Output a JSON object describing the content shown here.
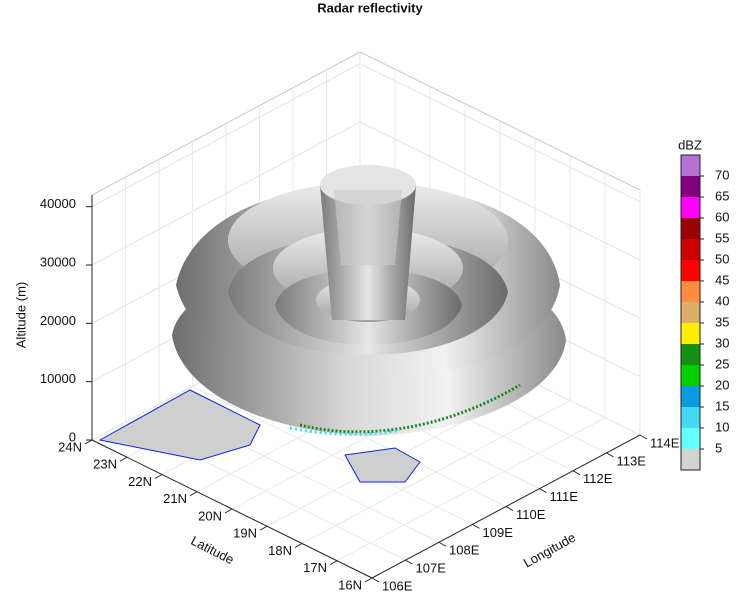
{
  "chart_data": {
    "type": "surface3d",
    "title": "Radar reflectivity",
    "xlabel": "Longitude",
    "ylabel": "Latitude",
    "zlabel": "Altitude (m)",
    "xlim": [
      106,
      114
    ],
    "ylim": [
      16,
      24
    ],
    "zlim": [
      0,
      42000
    ],
    "xticks": [
      {
        "value": 106,
        "label": "106E"
      },
      {
        "value": 107,
        "label": "107E"
      },
      {
        "value": 108,
        "label": "108E"
      },
      {
        "value": 109,
        "label": "109E"
      },
      {
        "value": 110,
        "label": "110E"
      },
      {
        "value": 111,
        "label": "111E"
      },
      {
        "value": 112,
        "label": "112E"
      },
      {
        "value": 113,
        "label": "113E"
      },
      {
        "value": 114,
        "label": "114E"
      }
    ],
    "yticks": [
      {
        "value": 16,
        "label": "16N"
      },
      {
        "value": 17,
        "label": "17N"
      },
      {
        "value": 18,
        "label": "18N"
      },
      {
        "value": 19,
        "label": "19N"
      },
      {
        "value": 20,
        "label": "20N"
      },
      {
        "value": 21,
        "label": "21N"
      },
      {
        "value": 22,
        "label": "22N"
      },
      {
        "value": 23,
        "label": "23N"
      },
      {
        "value": 24,
        "label": "24N"
      }
    ],
    "zticks": [
      0,
      10000,
      20000,
      30000,
      40000
    ],
    "grid": true,
    "colorbar": {
      "label": "dBZ",
      "lim": [
        0,
        75
      ],
      "ticks": [
        5,
        10,
        15,
        20,
        25,
        30,
        35,
        40,
        45,
        50,
        55,
        60,
        65,
        70
      ],
      "colors": [
        "#d3d3d3",
        "#66ffff",
        "#44d8f4",
        "#0b9be2",
        "#00d000",
        "#149114",
        "#ffee00",
        "#dcae6a",
        "#ff8c40",
        "#ff0000",
        "#cc0000",
        "#990000",
        "#ff00ff",
        "#800080",
        "#b572d2"
      ]
    }
  }
}
